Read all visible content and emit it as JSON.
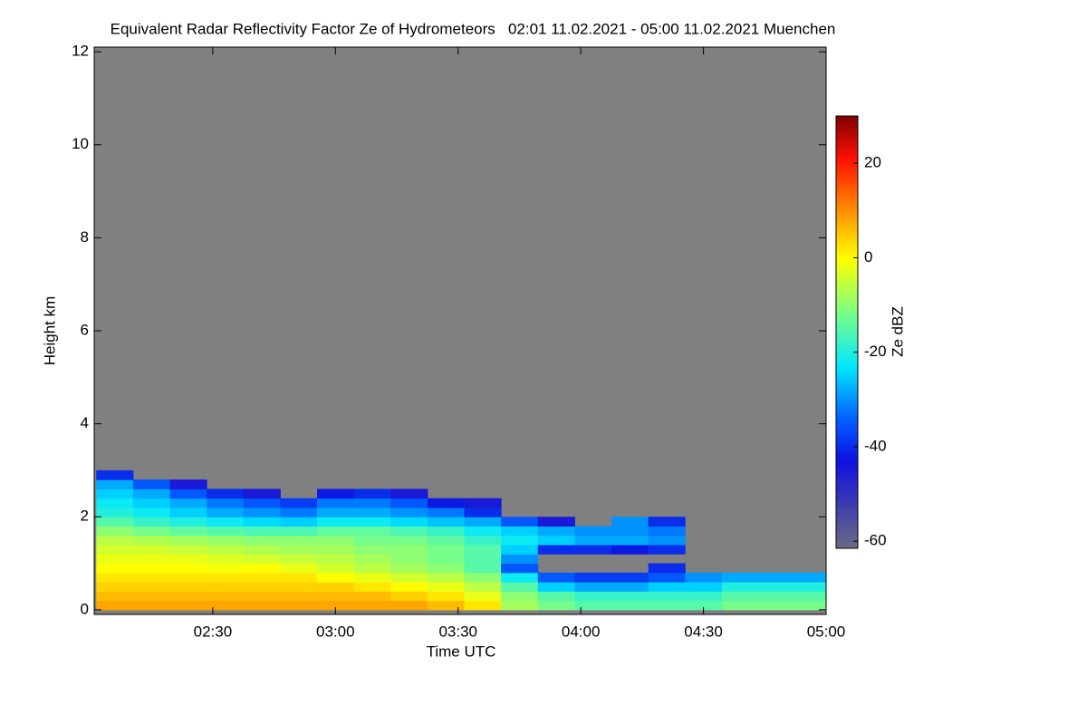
{
  "chart_data": {
    "type": "heatmap",
    "title": "Equivalent Radar Reflectivity Factor Ze of Hydrometeors   02:01 11.02.2021 - 05:00 11.02.2021 Muenchen",
    "x_label": "Time UTC",
    "y_label": "Height km",
    "colorbar_label": "Ze dBZ",
    "background_color": "#808080",
    "xlim": [
      2.0167,
      5.0
    ],
    "xticks": [
      {
        "value": 2.5,
        "label": "02:30"
      },
      {
        "value": 3,
        "label": "03:00"
      },
      {
        "value": 3.5,
        "label": "03:30"
      },
      {
        "value": 4,
        "label": "04:00"
      },
      {
        "value": 4.5,
        "label": "04:30"
      },
      {
        "value": 5,
        "label": "05:00"
      }
    ],
    "ylim": [
      -0.1,
      12.1
    ],
    "yticks": [
      0,
      2,
      4,
      6,
      8,
      10,
      12
    ],
    "clim": [
      -61.5,
      30
    ],
    "cticks": [
      -60,
      -40,
      -20,
      0,
      20
    ],
    "x": [
      2.1,
      2.25,
      2.4,
      2.55,
      2.7,
      2.85,
      3.0,
      3.15,
      3.3,
      3.45,
      3.6,
      3.75,
      3.9,
      4.05,
      4.2,
      4.35,
      4.5,
      4.65,
      4.8,
      4.95
    ],
    "y": [
      0.1,
      0.3,
      0.5,
      0.7,
      0.9,
      1.1,
      1.3,
      1.5,
      1.7,
      1.9,
      2.1,
      2.3,
      2.5,
      2.7,
      2.9
    ],
    "z": [
      [
        8,
        8,
        8,
        8,
        8,
        8,
        8,
        8,
        8,
        6,
        2,
        -8,
        -12,
        -15,
        -15,
        -15,
        -15,
        -12,
        -12,
        -12
      ],
      [
        6,
        6,
        6,
        6,
        6,
        6,
        6,
        6,
        4,
        2,
        -2,
        -10,
        -15,
        -18,
        -18,
        -18,
        -18,
        -15,
        -15,
        -15
      ],
      [
        4,
        4,
        4,
        4,
        4,
        4,
        4,
        2,
        0,
        -2,
        -6,
        -15,
        -25,
        -28,
        -28,
        -25,
        -25,
        -20,
        -20,
        -20
      ],
      [
        2,
        2,
        2,
        2,
        2,
        2,
        0,
        -2,
        -4,
        -6,
        -10,
        -22,
        -35,
        -38,
        -38,
        -35,
        -30,
        -28,
        -28,
        -28
      ],
      [
        0,
        0,
        0,
        -1,
        0,
        -2,
        -4,
        -6,
        -8,
        -10,
        -15,
        -35,
        null,
        null,
        null,
        -40,
        null,
        null,
        null,
        null
      ],
      [
        -2,
        -2,
        -2,
        -3,
        -4,
        -5,
        -6,
        -8,
        -10,
        -12,
        -15,
        -30,
        null,
        null,
        null,
        null,
        null,
        null,
        null,
        null
      ],
      [
        -4,
        -4,
        -5,
        -6,
        -7,
        -8,
        -8,
        -10,
        -10,
        -12,
        -15,
        -25,
        -40,
        -40,
        -42,
        -40,
        null,
        null,
        null,
        null
      ],
      [
        -6,
        -7,
        -8,
        -9,
        -10,
        -10,
        -10,
        -12,
        -12,
        -14,
        -18,
        -22,
        -25,
        -28,
        -28,
        -30,
        null,
        null,
        null,
        null
      ],
      [
        -10,
        -12,
        -14,
        -15,
        -16,
        -16,
        -14,
        -14,
        -16,
        -18,
        -22,
        -25,
        -28,
        -30,
        -30,
        -32,
        null,
        null,
        null,
        null
      ],
      [
        -15,
        -18,
        -20,
        -22,
        -24,
        -25,
        -22,
        -22,
        -24,
        -26,
        -28,
        -35,
        -45,
        null,
        -30,
        -40,
        null,
        null,
        null,
        null
      ],
      [
        -20,
        -22,
        -25,
        -28,
        -30,
        -32,
        -28,
        -28,
        -30,
        -32,
        -40,
        null,
        null,
        null,
        null,
        null,
        null,
        null,
        null,
        null
      ],
      [
        -22,
        -25,
        -28,
        -32,
        -35,
        -38,
        -32,
        -32,
        -35,
        -42,
        -45,
        null,
        null,
        null,
        null,
        null,
        null,
        null,
        null,
        null
      ],
      [
        -25,
        -28,
        -35,
        -40,
        -45,
        null,
        -42,
        -40,
        -45,
        null,
        null,
        null,
        null,
        null,
        null,
        null,
        null,
        null,
        null,
        null
      ],
      [
        -28,
        -35,
        -45,
        null,
        null,
        null,
        null,
        null,
        null,
        null,
        null,
        null,
        null,
        null,
        null,
        null,
        null,
        null,
        null,
        null
      ],
      [
        -40,
        null,
        null,
        null,
        null,
        null,
        null,
        null,
        null,
        null,
        null,
        null,
        null,
        null,
        null,
        null,
        null,
        null,
        null,
        null
      ]
    ]
  }
}
